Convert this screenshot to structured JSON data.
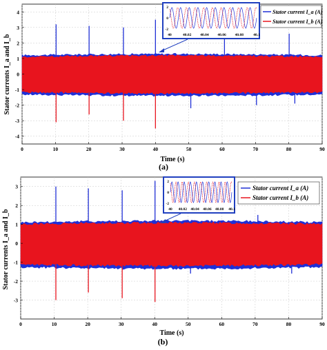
{
  "colors": {
    "series_a": "#1f2fd6",
    "series_b": "#e8141e",
    "inset_border": "#1f3fbf",
    "arrow": "#1f3fbf",
    "grid": "#c8c8c8"
  },
  "chart_data": [
    {
      "type": "line",
      "panel_label": "(a)",
      "xlabel": "Time (s)",
      "ylabel": "Stator currents I_a and I_b",
      "xlim": [
        0,
        90
      ],
      "ylim": [
        -4.5,
        4.5
      ],
      "xticks": [
        "0",
        "10",
        "20",
        "30",
        "40",
        "50",
        "60",
        "70",
        "80",
        "90"
      ],
      "yticks": [
        "4",
        "3",
        "2",
        "1",
        "0",
        "-1",
        "-2",
        "-3",
        "-4"
      ],
      "grid": true,
      "legend_position": "top-right",
      "series": [
        {
          "name": "Stator current I_a (A)",
          "color": "#1f2fd6",
          "band": [
            -1.3,
            1.2
          ],
          "spikes": [
            {
              "x": 10.2,
              "y": 3.2
            },
            {
              "x": 20.1,
              "y": 3.1
            },
            {
              "x": 30.4,
              "y": 3.0
            },
            {
              "x": 40.0,
              "y": 3.5
            },
            {
              "x": 50.6,
              "y": -2.2
            },
            {
              "x": 60.7,
              "y": 2.9
            },
            {
              "x": 70.3,
              "y": -2.0
            },
            {
              "x": 80.1,
              "y": 2.6
            },
            {
              "x": 81.8,
              "y": -1.9
            }
          ]
        },
        {
          "name": "Stator current I_b (A)",
          "color": "#e8141e",
          "band": [
            -1.15,
            1.1
          ],
          "spikes": [
            {
              "x": 10.2,
              "y": -3.1
            },
            {
              "x": 20.1,
              "y": -2.6
            },
            {
              "x": 30.4,
              "y": -3.0
            },
            {
              "x": 40.0,
              "y": -3.5
            }
          ]
        }
      ],
      "inset": {
        "xticks": [
          "40",
          "40.02",
          "40.04",
          "40.06",
          "40.08",
          "40.1"
        ],
        "yticks": [
          "2",
          "0",
          "-2"
        ]
      }
    },
    {
      "type": "line",
      "panel_label": "(b)",
      "xlabel": "Time (s)",
      "ylabel": "Stator currents I_a and I_b",
      "xlim": [
        0,
        90
      ],
      "ylim": [
        -4,
        3.5
      ],
      "xticks": [
        "0",
        "10",
        "20",
        "30",
        "40",
        "50",
        "60",
        "70",
        "80",
        "90"
      ],
      "yticks": [
        "3",
        "2",
        "1",
        "0",
        "-1",
        "-2",
        "-3"
      ],
      "grid": true,
      "legend_position": "top-right",
      "series": [
        {
          "name": "Stator current I_a (A)",
          "color": "#1f2fd6",
          "band": [
            -1.25,
            1.1
          ],
          "spikes": [
            {
              "x": 10.5,
              "y": 3.0
            },
            {
              "x": 20.2,
              "y": 2.9
            },
            {
              "x": 30.3,
              "y": 2.8
            },
            {
              "x": 40.1,
              "y": 3.3
            },
            {
              "x": 50.7,
              "y": -1.6
            },
            {
              "x": 70.8,
              "y": 1.5
            },
            {
              "x": 80.9,
              "y": -1.6
            }
          ]
        },
        {
          "name": "Stator current I_b (A)",
          "color": "#e8141e",
          "band": [
            -1.1,
            1.0
          ],
          "spikes": [
            {
              "x": 10.5,
              "y": -3.0
            },
            {
              "x": 20.2,
              "y": -2.6
            },
            {
              "x": 30.3,
              "y": -2.9
            },
            {
              "x": 40.1,
              "y": -3.1
            }
          ]
        }
      ],
      "inset": {
        "xticks": [
          "40",
          "40.02",
          "40.04",
          "40.06",
          "40.08",
          "40.1"
        ],
        "yticks": [
          "2",
          "0",
          "-2"
        ]
      }
    }
  ]
}
